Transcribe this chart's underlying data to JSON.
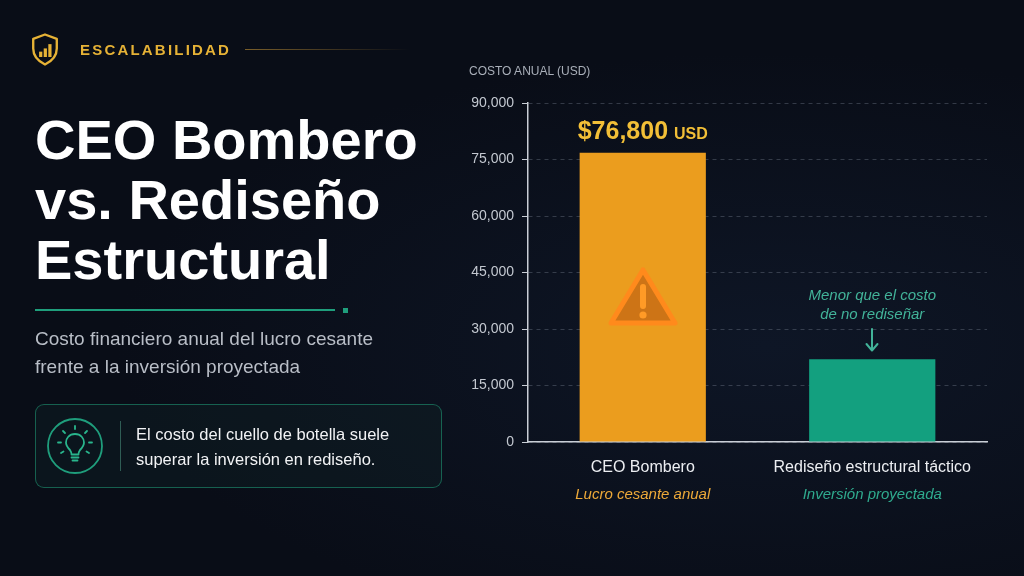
{
  "chart_data": {
    "type": "bar",
    "title": "CEO Bombero vs. Rediseño Estructural",
    "subtitle": "Costo financiero anual del lucro cesante frente a la inversión proyectada",
    "ylabel": "COSTO ANUAL (USD)",
    "annotations": [
      "ESCALABILIDAD",
      "El costo del cuello de botella suele superar la inversión en rediseño.",
      "Lucro cesante anual",
      "Inversión proyectada",
      {
        "text": "Menor que el costo de no rediseñar",
        "x": "Rediseño estructural táctico",
        "y": 22000
      }
    ],
    "categories": [
      "CEO Bombero",
      "Rediseño estructural táctico"
    ],
    "values": [
      76800,
      22000
    ],
    "colors": [
      "#eb9d1e",
      "#13a07f"
    ],
    "value_labels": [
      "$76,800 USD",
      null
    ],
    "ylim": [
      0,
      90000
    ],
    "yticks": [
      0,
      {
        "value": 15000,
        "label": "15,000"
      },
      {
        "value": 30000,
        "label": "30,000"
      },
      {
        "value": 45000,
        "label": "45,000"
      },
      {
        "value": 60000,
        "label": "60,000"
      },
      {
        "value": 75000,
        "label": "75,000"
      },
      {
        "value": 90000,
        "label": "90,000"
      }
    ],
    "grid": "y"
  }
}
